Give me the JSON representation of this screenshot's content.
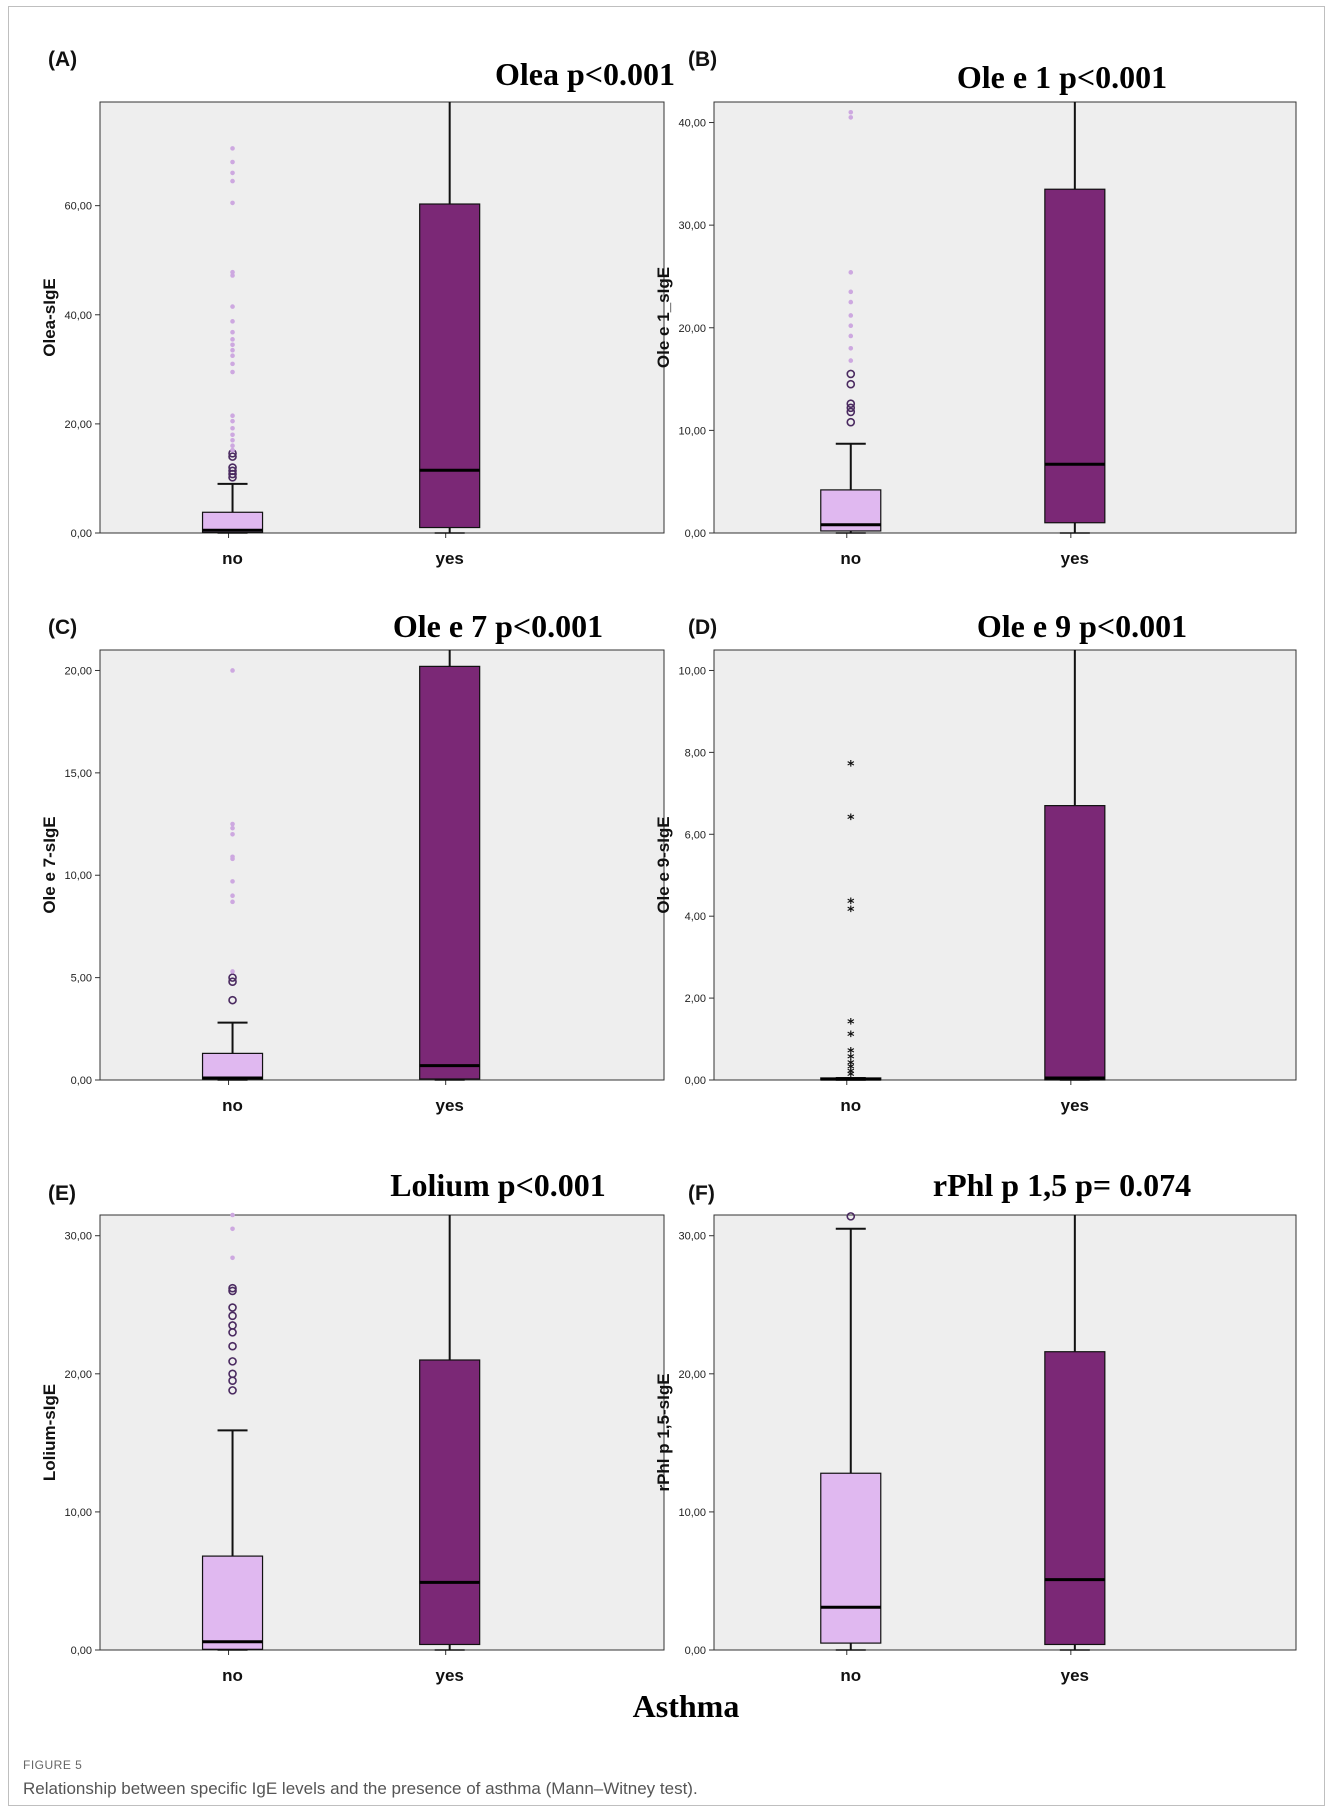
{
  "figure": {
    "label": "FIGURE 5",
    "caption": "Relationship between specific IgE levels and the presence of asthma (Mann–Witney test).",
    "common_xlabel": "Asthma"
  },
  "colors": {
    "no_box": "#e0b8f0",
    "yes_box": "#7b2876",
    "outlier_light": "#cda8e0",
    "panel_bg": "#eeeeee"
  },
  "chart_data": [
    {
      "type": "box",
      "panel": "(A)",
      "title": "Olea p<0.001",
      "ylabel": "Olea-sIgE",
      "xlabel": "",
      "ylim": [
        0,
        79
      ],
      "yticks": [
        "0,00",
        "20,00",
        "40,00",
        "60,00"
      ],
      "categories": [
        "no",
        "yes"
      ],
      "boxes": [
        {
          "category": "no",
          "whisker_low": 0,
          "q1": 0.1,
          "median": 0.5,
          "q3": 3.8,
          "whisker_high": 9.0,
          "outliers": [
            10.2,
            10.8,
            11.4,
            12.0,
            14.0,
            14.6
          ],
          "extremes": [
            15.2,
            16.0,
            17.0,
            18.0,
            19.2,
            20.5,
            21.5,
            29.5,
            31.0,
            32.5,
            33.5,
            34.5,
            35.5,
            36.8,
            38.8,
            41.5,
            47.2,
            47.8,
            60.5,
            64.5,
            66.0,
            68.0,
            70.5
          ],
          "extreme_marker": "dot"
        },
        {
          "category": "yes",
          "whisker_low": 0,
          "q1": 1.0,
          "median": 11.5,
          "q3": 60.3,
          "whisker_high": 79,
          "outliers": [],
          "extremes": [],
          "extreme_marker": "dot"
        }
      ]
    },
    {
      "type": "box",
      "panel": "(B)",
      "title": "Ole e 1 p<0.001",
      "ylabel": "Ole e 1_sIgE",
      "xlabel": "",
      "ylim": [
        0,
        42
      ],
      "yticks": [
        "0,00",
        "10,00",
        "20,00",
        "30,00",
        "40,00"
      ],
      "categories": [
        "no",
        "yes"
      ],
      "boxes": [
        {
          "category": "no",
          "whisker_low": 0,
          "q1": 0.2,
          "median": 0.8,
          "q3": 4.2,
          "whisker_high": 8.7,
          "outliers": [
            10.8,
            11.8,
            12.2,
            12.6,
            14.5,
            15.5
          ],
          "extremes": [
            16.8,
            18.0,
            19.2,
            20.2,
            21.2,
            22.5,
            23.5,
            25.4,
            40.5,
            41.0
          ],
          "extreme_marker": "dot"
        },
        {
          "category": "yes",
          "whisker_low": 0,
          "q1": 1.0,
          "median": 6.7,
          "q3": 33.5,
          "whisker_high": 42,
          "outliers": [],
          "extremes": [],
          "extreme_marker": "dot"
        }
      ]
    },
    {
      "type": "box",
      "panel": "(C)",
      "title": "Ole e 7 p<0.001",
      "ylabel": "Ole e 7-sIgE",
      "xlabel": "",
      "ylim": [
        0,
        21
      ],
      "yticks": [
        "0,00",
        "5,00",
        "10,00",
        "15,00",
        "20,00"
      ],
      "categories": [
        "no",
        "yes"
      ],
      "boxes": [
        {
          "category": "no",
          "whisker_low": 0,
          "q1": 0.05,
          "median": 0.1,
          "q3": 1.3,
          "whisker_high": 2.8,
          "outliers": [
            3.9,
            4.8,
            5.0
          ],
          "extremes": [
            5.3,
            8.7,
            9.0,
            9.7,
            10.8,
            10.9,
            12.0,
            12.3,
            12.5,
            20.0
          ],
          "extreme_marker": "dot"
        },
        {
          "category": "yes",
          "whisker_low": 0,
          "q1": 0.05,
          "median": 0.7,
          "q3": 20.2,
          "whisker_high": 21,
          "outliers": [],
          "extremes": [],
          "extreme_marker": "dot"
        }
      ]
    },
    {
      "type": "box",
      "panel": "(D)",
      "title": "Ole e 9 p<0.001",
      "ylabel": "Ole e 9-sIgE",
      "xlabel": "",
      "ylim": [
        0,
        10.5
      ],
      "yticks": [
        "0,00",
        "2,00",
        "4,00",
        "6,00",
        "8,00",
        "10,00"
      ],
      "categories": [
        "no",
        "yes"
      ],
      "boxes": [
        {
          "category": "no",
          "whisker_low": 0,
          "q1": 0,
          "median": 0.02,
          "q3": 0.05,
          "whisker_high": 0.05,
          "outliers": [],
          "extremes": [
            0.12,
            0.2,
            0.3,
            0.4,
            0.55,
            0.7,
            1.1,
            1.4,
            4.15,
            4.35,
            6.4,
            7.7
          ],
          "extreme_marker": "star"
        },
        {
          "category": "yes",
          "whisker_low": 0,
          "q1": 0,
          "median": 0.05,
          "q3": 6.7,
          "whisker_high": 10.5,
          "outliers": [],
          "extremes": [],
          "extreme_marker": "star"
        }
      ]
    },
    {
      "type": "box",
      "panel": "(E)",
      "title": "Lolium  p<0.001",
      "ylabel": "Lolium-sIgE",
      "xlabel": "",
      "ylim": [
        0,
        31.5
      ],
      "yticks": [
        "0,00",
        "10,00",
        "20,00",
        "30,00"
      ],
      "categories": [
        "no",
        "yes"
      ],
      "boxes": [
        {
          "category": "no",
          "whisker_low": 0,
          "q1": 0.05,
          "median": 0.6,
          "q3": 6.8,
          "whisker_high": 15.9,
          "outliers": [
            18.8,
            19.5,
            20.0,
            20.9,
            22.0,
            23.0,
            23.5,
            24.2,
            24.8,
            26.0,
            26.2
          ],
          "extremes": [
            28.4,
            30.5,
            31.5
          ],
          "extreme_marker": "dot"
        },
        {
          "category": "yes",
          "whisker_low": 0,
          "q1": 0.4,
          "median": 4.9,
          "q3": 21.0,
          "whisker_high": 31.5,
          "outliers": [],
          "extremes": [],
          "extreme_marker": "dot"
        }
      ]
    },
    {
      "type": "box",
      "panel": "(F)",
      "title": "rPhl  p 1,5 p= 0.074",
      "ylabel": "rPhl p 1,5-sIgE",
      "xlabel": "",
      "ylim": [
        0,
        31.5
      ],
      "yticks": [
        "0,00",
        "10,00",
        "20,00",
        "30,00"
      ],
      "categories": [
        "no",
        "yes"
      ],
      "boxes": [
        {
          "category": "no",
          "whisker_low": 0,
          "q1": 0.5,
          "median": 3.1,
          "q3": 12.8,
          "whisker_high": 30.5,
          "outliers": [
            31.4
          ],
          "extremes": [],
          "extreme_marker": "dot"
        },
        {
          "category": "yes",
          "whisker_low": 0,
          "q1": 0.4,
          "median": 5.1,
          "q3": 21.6,
          "whisker_high": 31.5,
          "outliers": [],
          "extremes": [],
          "extreme_marker": "dot"
        }
      ]
    }
  ]
}
